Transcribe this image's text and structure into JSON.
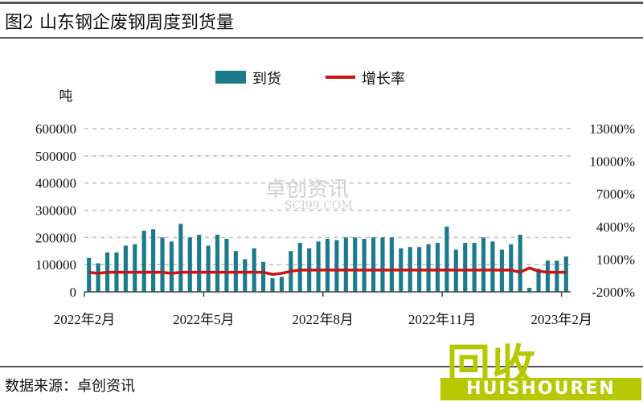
{
  "header": {
    "title": "图2  山东钢企废钢周度到货量"
  },
  "footer": {
    "source": "数据来源：卓创资讯"
  },
  "watermark": {
    "cn": "卓创资讯",
    "en": "SCI99.COM"
  },
  "logo": {
    "cn": "回收",
    "en": "HUISHOUREN"
  },
  "chart_data": {
    "type": "bar",
    "title": "山东钢企废钢周度到货量",
    "ylabel_left": "吨",
    "ylim_left": [
      0,
      600000
    ],
    "yticks_left": [
      "600000",
      "500000",
      "400000",
      "300000",
      "200000",
      "100000",
      "0"
    ],
    "ylim_right": [
      -2000,
      13000
    ],
    "yticks_right": [
      "13000%",
      "10000%",
      "7000%",
      "4000%",
      "1000%",
      "-2000%"
    ],
    "xticks": [
      {
        "label": "2022年2月",
        "index": 0
      },
      {
        "label": "2022年5月",
        "index": 13
      },
      {
        "label": "2022年8月",
        "index": 26
      },
      {
        "label": "2022年11月",
        "index": 39
      },
      {
        "label": "2023年2月",
        "index": 52
      }
    ],
    "legend": [
      {
        "name": "到货",
        "color": "#1b7a8c",
        "kind": "bar"
      },
      {
        "name": "增长率",
        "color": "#c81414",
        "kind": "line"
      }
    ],
    "grid": "horizontal-dashed",
    "series": [
      {
        "name": "到货",
        "axis": "left",
        "values": [
          125000,
          105000,
          145000,
          145000,
          170000,
          175000,
          225000,
          230000,
          200000,
          185000,
          250000,
          200000,
          210000,
          170000,
          210000,
          195000,
          150000,
          120000,
          160000,
          110000,
          50000,
          55000,
          150000,
          180000,
          160000,
          185000,
          195000,
          190000,
          200000,
          200000,
          195000,
          200000,
          200000,
          200000,
          160000,
          165000,
          165000,
          175000,
          180000,
          240000,
          155000,
          180000,
          180000,
          200000,
          185000,
          155000,
          175000,
          210000,
          15000,
          85000,
          115000,
          115000,
          130000
        ]
      },
      {
        "name": "增长率",
        "axis": "right",
        "values": [
          -200,
          -300,
          -200,
          -200,
          -200,
          -200,
          -200,
          -200,
          -200,
          -300,
          -200,
          -200,
          -200,
          -200,
          -200,
          -200,
          -200,
          -200,
          -200,
          -200,
          -400,
          -300,
          -100,
          0,
          0,
          0,
          0,
          0,
          0,
          0,
          0,
          0,
          0,
          0,
          0,
          0,
          0,
          0,
          0,
          0,
          0,
          0,
          0,
          0,
          0,
          0,
          0,
          -200,
          200,
          -100,
          -200,
          -200,
          -200
        ]
      }
    ]
  }
}
